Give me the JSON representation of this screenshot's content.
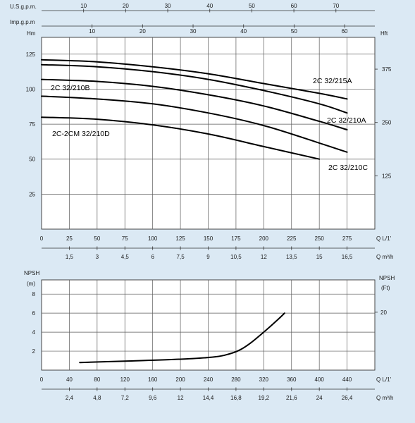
{
  "colors": {
    "panel": "#ffffff",
    "background": "#dbe9f4",
    "grid": "#5a5a5a",
    "curve": "#000000"
  },
  "chart_data": [
    {
      "type": "line",
      "title": "",
      "top_axes": [
        {
          "label": "U.S.g.p.m.",
          "ticks": [
            10,
            20,
            30,
            40,
            50,
            60,
            70
          ],
          "q_per_tick": [
            37.85,
            75.71,
            113.56,
            151.42,
            189.27,
            227.12,
            264.98
          ]
        },
        {
          "label": "Imp.g.p.m",
          "ticks": [
            10,
            20,
            30,
            40,
            50,
            60
          ],
          "q_per_tick": [
            45.46,
            90.92,
            136.38,
            181.84,
            227.3,
            272.76
          ]
        }
      ],
      "left_axis": {
        "label": "Hm",
        "ticks": [
          25,
          50,
          75,
          100,
          125
        ],
        "ylim": [
          0,
          137
        ]
      },
      "right_axis": {
        "label": "Hft",
        "ticks": [
          125,
          250,
          375
        ]
      },
      "x_axis": {
        "label": "Q L/1'",
        "ticks": [
          0,
          25,
          50,
          75,
          100,
          125,
          150,
          175,
          200,
          225,
          250,
          275
        ],
        "xlim": [
          0,
          300
        ]
      },
      "x_axis_secondary": {
        "label": "Q m³/h",
        "ticks": [
          "1,5",
          "3",
          "4,5",
          "6",
          "7,5",
          "9",
          "10,5",
          "12",
          "13,5",
          "15",
          "16,5"
        ],
        "q_per_tick": [
          25,
          50,
          75,
          100,
          125,
          150,
          175,
          200,
          225,
          250,
          275
        ]
      },
      "grid": true,
      "series": [
        {
          "name": "2C 32/215A",
          "x": [
            0,
            50,
            100,
            150,
            200,
            250,
            275
          ],
          "y": [
            121,
            119.5,
            116,
            111,
            104,
            97,
            93
          ]
        },
        {
          "name": "2C 32/210B",
          "x": [
            0,
            50,
            100,
            150,
            200,
            250,
            275
          ],
          "y": [
            117.5,
            116,
            112.5,
            107,
            99,
            89.5,
            83
          ]
        },
        {
          "name": "2C 32/210A",
          "x": [
            0,
            50,
            100,
            150,
            200,
            250,
            275
          ],
          "y": [
            107,
            105.5,
            102,
            96,
            88,
            77,
            71
          ]
        },
        {
          "name": "2C 32/210C",
          "x": [
            0,
            50,
            100,
            150,
            200,
            250,
            275
          ],
          "y": [
            95,
            93,
            89.5,
            83,
            74,
            61.5,
            55
          ]
        },
        {
          "name": "2C-2CM 32/210D",
          "x": [
            0,
            50,
            100,
            150,
            200,
            250
          ],
          "y": [
            80,
            78.5,
            74.5,
            68,
            59,
            50
          ]
        }
      ]
    },
    {
      "type": "line",
      "title": "",
      "left_axis": {
        "label": "NPSH",
        "unit": "(m)",
        "ticks": [
          2,
          4,
          6,
          8
        ],
        "ylim": [
          0,
          9.5
        ]
      },
      "right_axis": {
        "label": "NPSH",
        "unit": "(Ft)",
        "ticks": [
          20
        ]
      },
      "x_axis": {
        "label": "Q L/1'",
        "ticks": [
          0,
          40,
          80,
          120,
          160,
          200,
          240,
          280,
          320,
          360,
          400,
          440
        ],
        "xlim": [
          0,
          480
        ]
      },
      "x_axis_secondary": {
        "label": "Q m³/h",
        "ticks": [
          "2,4",
          "4,8",
          "7,2",
          "9,6",
          "12",
          "14,4",
          "16,8",
          "19,2",
          "21,6",
          "24",
          "26,4"
        ],
        "q_per_tick": [
          40,
          80,
          120,
          160,
          200,
          240,
          280,
          320,
          360,
          400,
          440
        ]
      },
      "grid": true,
      "series": [
        {
          "name": "",
          "x": [
            55,
            120,
            200,
            250,
            270,
            285,
            300,
            320,
            340,
            350
          ],
          "y": [
            0.8,
            0.95,
            1.15,
            1.4,
            1.7,
            2.1,
            2.8,
            4.0,
            5.3,
            6.0
          ]
        }
      ]
    }
  ]
}
